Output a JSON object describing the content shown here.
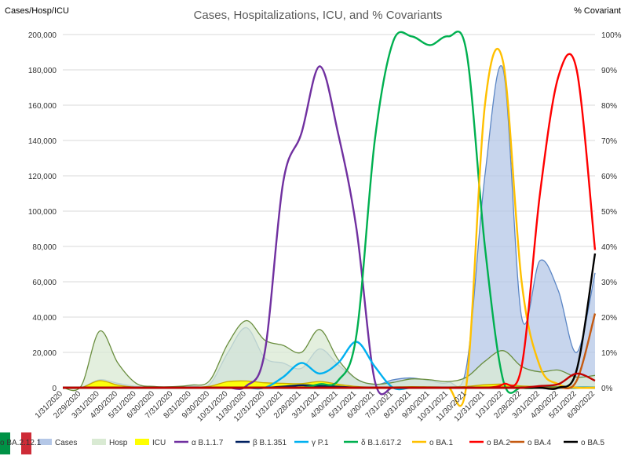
{
  "flag": {
    "colors": [
      "#009246",
      "#ffffff",
      "#ce2b37"
    ]
  },
  "chart_data": {
    "type": "area",
    "title": "Cases, Hospitalizations, ICU, and % Covariants",
    "ylabel": "Cases/Hosp/ICU",
    "y2label": "% Covariant",
    "ylim": [
      0,
      200000
    ],
    "y2lim": [
      0,
      100
    ],
    "yticks": [
      0,
      20000,
      40000,
      60000,
      80000,
      100000,
      120000,
      140000,
      160000,
      180000,
      200000
    ],
    "ytick_labels": [
      "0",
      "20,000",
      "40,000",
      "60,000",
      "80,000",
      "100,000",
      "120,000",
      "140,000",
      "160,000",
      "180,000",
      "200,000"
    ],
    "y2ticks": [
      0,
      10,
      20,
      30,
      40,
      50,
      60,
      70,
      80,
      90,
      100
    ],
    "y2tick_labels": [
      "0%",
      "10%",
      "20%",
      "30%",
      "40%",
      "50%",
      "60%",
      "70%",
      "80%",
      "90%",
      "100%"
    ],
    "x_categories": [
      "1/31/2020",
      "2/29/2020",
      "3/31/2020",
      "4/30/2020",
      "5/31/2020",
      "6/30/2020",
      "7/31/2020",
      "8/31/2020",
      "9/30/2020",
      "10/31/2020",
      "11/30/2020",
      "12/31/2020",
      "1/31/2021",
      "2/28/2021",
      "3/31/2021",
      "4/30/2021",
      "5/31/2021",
      "6/30/2021",
      "7/31/2021",
      "8/31/2021",
      "9/30/2021",
      "10/31/2021",
      "11/30/2021",
      "12/31/2021",
      "1/31/2022",
      "2/28/2022",
      "3/31/2022",
      "4/30/2022",
      "5/31/2022",
      "6/30/2022"
    ],
    "grid": true,
    "legend_position": "bottom",
    "series": [
      {
        "name": "Cases",
        "kind": "area",
        "axis": "left",
        "color": "#b4c7e7",
        "stroke": "#5b86c5",
        "values": [
          0,
          200,
          4500,
          2500,
          700,
          250,
          300,
          1000,
          2000,
          20000,
          34000,
          17000,
          14000,
          11000,
          22000,
          13000,
          5000,
          1500,
          4500,
          5500,
          4000,
          3000,
          12000,
          120000,
          180000,
          40000,
          72000,
          55000,
          20000,
          65000
        ]
      },
      {
        "name": "Hosp",
        "kind": "area",
        "axis": "left",
        "color": "#d9ead3",
        "stroke": "#6a8e3f",
        "values": [
          0,
          1000,
          32000,
          14000,
          2500,
          700,
          600,
          1500,
          4000,
          25000,
          38000,
          27000,
          24000,
          20000,
          33000,
          16000,
          5000,
          2000,
          3000,
          5000,
          4500,
          3500,
          6000,
          15000,
          21000,
          12000,
          9000,
          10000,
          6000,
          7000
        ]
      },
      {
        "name": "ICU",
        "kind": "area",
        "axis": "left",
        "color": "#ffff00",
        "stroke": "#c9a800",
        "values": [
          0,
          100,
          4000,
          1500,
          300,
          100,
          100,
          200,
          800,
          3500,
          3800,
          2800,
          2500,
          2300,
          3500,
          2000,
          700,
          300,
          400,
          600,
          500,
          400,
          700,
          1700,
          2000,
          1000,
          700,
          600,
          400,
          400
        ]
      },
      {
        "name": "α B.1.1.7",
        "kind": "line",
        "axis": "right",
        "color": "#7030a0",
        "values": [
          0,
          0,
          0,
          0,
          0,
          0,
          0,
          0,
          0,
          0,
          0.5,
          10,
          58,
          72,
          91,
          72,
          45,
          2,
          0,
          0,
          0,
          0,
          0,
          0,
          0,
          0,
          0,
          0,
          0,
          0
        ]
      },
      {
        "name": "β B.1.351",
        "kind": "line",
        "axis": "right",
        "color": "#002060",
        "values": [
          0,
          0,
          0,
          0,
          0,
          0,
          0,
          0,
          0,
          0,
          0,
          0,
          0.3,
          0.7,
          0.5,
          0.3,
          0,
          0,
          0,
          0,
          0,
          0,
          0,
          0,
          0,
          0,
          0,
          0,
          0,
          0
        ]
      },
      {
        "name": "γ P.1",
        "kind": "line",
        "axis": "right",
        "color": "#00b0f0",
        "values": [
          0,
          0,
          0,
          0,
          0,
          0,
          0,
          0,
          0,
          0,
          0,
          0,
          3,
          7,
          4,
          7,
          13,
          6,
          0,
          0,
          0,
          0,
          0,
          0,
          0,
          0,
          0,
          0,
          0,
          0
        ]
      },
      {
        "name": "δ B.1.617.2",
        "kind": "line",
        "axis": "right",
        "color": "#00b050",
        "values": [
          0,
          0,
          0,
          0,
          0,
          0,
          0,
          0,
          0,
          0,
          0,
          0,
          0,
          0,
          1,
          2,
          15,
          70,
          98,
          99.5,
          97,
          99.5,
          95,
          40,
          2,
          0,
          0,
          0,
          0,
          0
        ]
      },
      {
        "name": "ο BA.1",
        "kind": "line",
        "axis": "right",
        "color": "#ffc000",
        "values": [
          0,
          0,
          0,
          0,
          0,
          0,
          0,
          0,
          0,
          0,
          0,
          0,
          0,
          0,
          0,
          0,
          0,
          0,
          0,
          0,
          0,
          0,
          1,
          80,
          92,
          30,
          6,
          1,
          0,
          0
        ]
      },
      {
        "name": "ο BA.2",
        "kind": "line",
        "axis": "right",
        "color": "#ff0000",
        "values": [
          0,
          0,
          0,
          0,
          0,
          0,
          0,
          0,
          0,
          0,
          0,
          0,
          0,
          0,
          0,
          0,
          0,
          0,
          0,
          0,
          0,
          0,
          0,
          0,
          1,
          6,
          55,
          88,
          90,
          39
        ]
      },
      {
        "name": "ο BA.4",
        "kind": "line",
        "axis": "right",
        "color": "#c55a11",
        "values": [
          0,
          0,
          0,
          0,
          0,
          0,
          0,
          0,
          0,
          0,
          0,
          0,
          0,
          0,
          0,
          0,
          0,
          0,
          0,
          0,
          0,
          0,
          0,
          0,
          0,
          0,
          0,
          0,
          2,
          21
        ]
      },
      {
        "name": "ο BA.5",
        "kind": "line",
        "axis": "right",
        "color": "#000000",
        "values": [
          0,
          0,
          0,
          0,
          0,
          0,
          0,
          0,
          0,
          0,
          0,
          0,
          0,
          0,
          0,
          0,
          0,
          0,
          0,
          0,
          0,
          0,
          0,
          0,
          0,
          0,
          0,
          0,
          5,
          38
        ]
      },
      {
        "name": "ο BA.2.12.1",
        "kind": "line",
        "axis": "right",
        "color": "#c00000",
        "values": [
          0,
          0,
          0,
          0,
          0,
          0,
          0,
          0,
          0,
          0,
          0,
          0,
          0,
          0,
          0,
          0,
          0,
          0,
          0,
          0,
          0,
          0,
          0,
          0,
          0,
          0,
          0.5,
          1,
          4,
          2
        ]
      }
    ]
  }
}
